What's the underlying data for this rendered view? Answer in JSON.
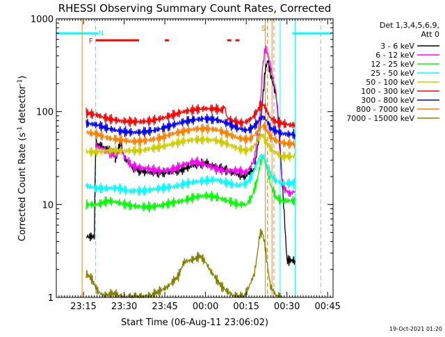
{
  "chart_data": {
    "type": "line",
    "title": "RHESSI Observing Summary Count Rates, Corrected",
    "xlabel": "Start Time (06-Aug-11 23:06:02)",
    "ylabel_main": "Corrected Count Rate (s",
    "ylabel_sup1": "-1",
    "ylabel_mid": " detector",
    "ylabel_sup2": "-1",
    "ylabel_end": ")",
    "yscale": "log",
    "ylim": [
      1,
      1000
    ],
    "y_ticks": [
      {
        "v": 1,
        "label": "1"
      },
      {
        "v": 10,
        "label": "10"
      },
      {
        "v": 100,
        "label": "100"
      },
      {
        "v": 1000,
        "label": "1000"
      }
    ],
    "xlim_min": [
      5,
      107
    ],
    "x_ticks": [
      {
        "m": 15,
        "label": "23:15"
      },
      {
        "m": 30,
        "label": "23:30"
      },
      {
        "m": 45,
        "label": "23:45"
      },
      {
        "m": 60,
        "label": "00:00"
      },
      {
        "m": 75,
        "label": "00:15"
      },
      {
        "m": 90,
        "label": "00:30"
      },
      {
        "m": 105,
        "label": "00:45"
      }
    ],
    "legend": {
      "header1": "Det 1,3,4,5,6,9,",
      "header2": "Att 0",
      "placement": "right"
    },
    "series": [
      {
        "name": "3 - 6 keV",
        "color": "#000000",
        "points": [
          [
            16,
            4.5
          ],
          [
            19,
            4.5
          ],
          [
            19.5,
            45
          ],
          [
            22,
            42
          ],
          [
            26,
            38
          ],
          [
            27,
            30
          ],
          [
            28,
            42
          ],
          [
            29,
            45
          ],
          [
            30,
            32
          ],
          [
            33,
            25
          ],
          [
            36,
            23
          ],
          [
            40,
            22
          ],
          [
            45,
            22
          ],
          [
            50,
            23
          ],
          [
            55,
            26
          ],
          [
            60,
            28
          ],
          [
            65,
            25
          ],
          [
            70,
            22
          ],
          [
            74,
            20
          ],
          [
            78,
            24
          ],
          [
            80,
            60
          ],
          [
            82,
            280
          ],
          [
            83,
            360
          ],
          [
            84,
            250
          ],
          [
            86,
            150
          ],
          [
            87,
            80
          ],
          [
            88,
            22
          ],
          [
            89,
            8
          ],
          [
            90,
            2.5
          ],
          [
            93,
            2.5
          ]
        ]
      },
      {
        "name": "6 - 12 keV",
        "color": "#ff00ff",
        "points": [
          [
            19.5,
            42
          ],
          [
            22,
            40
          ],
          [
            26,
            34
          ],
          [
            28,
            36
          ],
          [
            29,
            40
          ],
          [
            30,
            33
          ],
          [
            33,
            26
          ],
          [
            36,
            25
          ],
          [
            40,
            24
          ],
          [
            44,
            23
          ],
          [
            48,
            24
          ],
          [
            52,
            27
          ],
          [
            56,
            29
          ],
          [
            60,
            27
          ],
          [
            64,
            24
          ],
          [
            68,
            23
          ],
          [
            72,
            23
          ],
          [
            75,
            22
          ],
          [
            78,
            30
          ],
          [
            80,
            90
          ],
          [
            81,
            300
          ],
          [
            82,
            480
          ],
          [
            83,
            420
          ],
          [
            84,
            300
          ],
          [
            86,
            160
          ],
          [
            87,
            60
          ],
          [
            88,
            20
          ],
          [
            89,
            15
          ],
          [
            91,
            13
          ],
          [
            93,
            14
          ]
        ]
      },
      {
        "name": "12 - 25 keV",
        "color": "#00ff00",
        "points": [
          [
            16,
            10
          ],
          [
            20,
            10
          ],
          [
            24,
            11
          ],
          [
            28,
            10.5
          ],
          [
            32,
            9.8
          ],
          [
            36,
            9.5
          ],
          [
            40,
            9.5
          ],
          [
            44,
            9.8
          ],
          [
            48,
            10.5
          ],
          [
            52,
            11
          ],
          [
            56,
            12
          ],
          [
            60,
            12.5
          ],
          [
            64,
            12
          ],
          [
            68,
            11
          ],
          [
            72,
            10
          ],
          [
            75,
            10
          ],
          [
            77,
            12
          ],
          [
            79,
            18
          ],
          [
            80,
            26
          ],
          [
            81,
            33
          ],
          [
            82,
            30
          ],
          [
            83,
            22
          ],
          [
            84,
            16
          ],
          [
            86,
            12
          ],
          [
            88,
            11
          ],
          [
            91,
            11
          ],
          [
            93,
            11
          ]
        ]
      },
      {
        "name": "25 - 50 keV",
        "color": "#00ffff",
        "points": [
          [
            16,
            16
          ],
          [
            20,
            15
          ],
          [
            24,
            15
          ],
          [
            28,
            15
          ],
          [
            32,
            14
          ],
          [
            36,
            14
          ],
          [
            40,
            14.5
          ],
          [
            44,
            15
          ],
          [
            48,
            15.5
          ],
          [
            52,
            16.5
          ],
          [
            56,
            17.5
          ],
          [
            60,
            18
          ],
          [
            64,
            18.5
          ],
          [
            68,
            17
          ],
          [
            72,
            16
          ],
          [
            75,
            17
          ],
          [
            77,
            20
          ],
          [
            79,
            28
          ],
          [
            80,
            33
          ],
          [
            81,
            34
          ],
          [
            82,
            30
          ],
          [
            83,
            25
          ],
          [
            84,
            21
          ],
          [
            86,
            18
          ],
          [
            88,
            17
          ],
          [
            91,
            17
          ],
          [
            93,
            17
          ]
        ]
      },
      {
        "name": "50 - 100 keV",
        "color": "#cccc00",
        "points": [
          [
            16,
            37
          ],
          [
            20,
            37
          ],
          [
            24,
            38
          ],
          [
            28,
            38
          ],
          [
            32,
            38
          ],
          [
            36,
            38
          ],
          [
            40,
            40
          ],
          [
            44,
            42
          ],
          [
            48,
            45
          ],
          [
            52,
            48
          ],
          [
            56,
            50
          ],
          [
            60,
            50
          ],
          [
            64,
            49
          ],
          [
            68,
            45
          ],
          [
            72,
            40
          ],
          [
            75,
            38
          ],
          [
            77,
            40
          ],
          [
            79,
            47
          ],
          [
            80,
            55
          ],
          [
            81,
            56
          ],
          [
            82,
            50
          ],
          [
            83,
            45
          ],
          [
            84,
            40
          ],
          [
            86,
            36
          ],
          [
            88,
            33
          ],
          [
            91,
            33
          ],
          [
            93,
            33
          ]
        ]
      },
      {
        "name": "100 - 300 keV",
        "color": "#ff0000",
        "points": [
          [
            16,
            97
          ],
          [
            20,
            92
          ],
          [
            24,
            84
          ],
          [
            28,
            80
          ],
          [
            32,
            78
          ],
          [
            36,
            78
          ],
          [
            40,
            80
          ],
          [
            44,
            85
          ],
          [
            48,
            92
          ],
          [
            52,
            100
          ],
          [
            56,
            105
          ],
          [
            60,
            108
          ],
          [
            64,
            107
          ],
          [
            66,
            103
          ],
          [
            67,
            115
          ],
          [
            68,
            85
          ],
          [
            70,
            80
          ],
          [
            73,
            75
          ],
          [
            75,
            78
          ],
          [
            77,
            85
          ],
          [
            79,
            100
          ],
          [
            80,
            115
          ],
          [
            81,
            120
          ],
          [
            82,
            112
          ],
          [
            83,
            95
          ],
          [
            84,
            85
          ],
          [
            86,
            78
          ],
          [
            88,
            75
          ],
          [
            91,
            72
          ],
          [
            93,
            72
          ]
        ]
      },
      {
        "name": "300 - 800 keV",
        "color": "#0000ff",
        "points": [
          [
            16,
            75
          ],
          [
            20,
            72
          ],
          [
            24,
            66
          ],
          [
            28,
            62
          ],
          [
            32,
            60
          ],
          [
            36,
            60
          ],
          [
            40,
            62
          ],
          [
            44,
            66
          ],
          [
            48,
            72
          ],
          [
            52,
            78
          ],
          [
            56,
            82
          ],
          [
            60,
            84
          ],
          [
            64,
            82
          ],
          [
            68,
            75
          ],
          [
            72,
            66
          ],
          [
            75,
            63
          ],
          [
            77,
            66
          ],
          [
            79,
            75
          ],
          [
            80,
            84
          ],
          [
            81,
            88
          ],
          [
            82,
            84
          ],
          [
            83,
            75
          ],
          [
            84,
            66
          ],
          [
            86,
            62
          ],
          [
            88,
            58
          ],
          [
            91,
            57
          ],
          [
            93,
            57
          ]
        ]
      },
      {
        "name": "800 - 7000 keV",
        "color": "#ff7f00",
        "points": [
          [
            16,
            60
          ],
          [
            20,
            57
          ],
          [
            24,
            52
          ],
          [
            28,
            50
          ],
          [
            32,
            48
          ],
          [
            36,
            48
          ],
          [
            40,
            50
          ],
          [
            44,
            53
          ],
          [
            48,
            58
          ],
          [
            52,
            62
          ],
          [
            56,
            65
          ],
          [
            60,
            66
          ],
          [
            64,
            64
          ],
          [
            68,
            58
          ],
          [
            72,
            52
          ],
          [
            75,
            50
          ],
          [
            77,
            52
          ],
          [
            79,
            60
          ],
          [
            80,
            66
          ],
          [
            81,
            70
          ],
          [
            82,
            68
          ],
          [
            83,
            60
          ],
          [
            84,
            53
          ],
          [
            86,
            49
          ],
          [
            88,
            46
          ],
          [
            91,
            45
          ],
          [
            93,
            45
          ]
        ]
      },
      {
        "name": "7000 - 15000 keV",
        "color": "#808000",
        "points": [
          [
            16,
            1.8
          ],
          [
            18,
            1.6
          ],
          [
            20,
            1.2
          ],
          [
            22,
            1.05
          ],
          [
            26,
            1.1
          ],
          [
            30,
            1.0
          ],
          [
            34,
            1.0
          ],
          [
            40,
            1.05
          ],
          [
            46,
            1.3
          ],
          [
            50,
            1.7
          ],
          [
            52,
            2.4
          ],
          [
            56,
            2.6
          ],
          [
            58,
            2.8
          ],
          [
            60,
            2.4
          ],
          [
            62,
            1.9
          ],
          [
            66,
            1.3
          ],
          [
            70,
            1.05
          ],
          [
            74,
            1.0
          ],
          [
            76,
            1.3
          ],
          [
            78,
            1.8
          ],
          [
            79,
            2.8
          ],
          [
            80,
            4.8
          ],
          [
            81,
            5.0
          ],
          [
            82,
            3.5
          ],
          [
            83,
            2.0
          ],
          [
            84,
            1.3
          ],
          [
            86,
            1.05
          ],
          [
            88,
            1.0
          ]
        ]
      }
    ],
    "red_bars": [
      [
        19.5,
        35.5
      ],
      [
        45,
        46.5
      ],
      [
        68,
        69.5
      ],
      [
        71,
        72.5
      ]
    ],
    "red_bar_label": "F",
    "night_start_min": 19.5,
    "night_label": "N",
    "saa_start_min": 84,
    "saa_label": "S",
    "cyan_bars": [
      [
        5,
        20.5
      ],
      [
        92,
        106.5
      ]
    ],
    "cyan_solid_lines": [
      5,
      87.5,
      93,
      107
    ],
    "cyan_dashed_lines": [
      19.5,
      102.5
    ],
    "orange_solid_lines": [
      14.5,
      82,
      84.5
    ],
    "orange_dashed_lines": [
      82.8,
      85.2
    ]
  },
  "footer_date": "19-Oct-2021 01:20"
}
